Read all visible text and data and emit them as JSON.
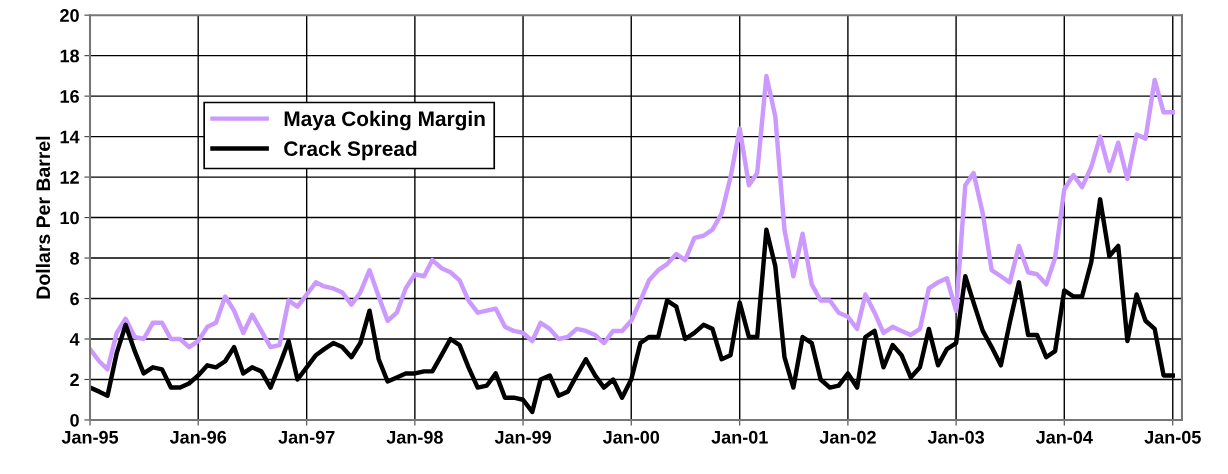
{
  "chart_data": {
    "type": "line",
    "ylabel": "Dollars Per Barrel",
    "x": [
      "1995-01",
      "1995-02",
      "1995-03",
      "1995-04",
      "1995-05",
      "1995-06",
      "1995-07",
      "1995-08",
      "1995-09",
      "1995-10",
      "1995-11",
      "1995-12",
      "1996-01",
      "1996-02",
      "1996-03",
      "1996-04",
      "1996-05",
      "1996-06",
      "1996-07",
      "1996-08",
      "1996-09",
      "1996-10",
      "1996-11",
      "1996-12",
      "1997-01",
      "1997-02",
      "1997-03",
      "1997-04",
      "1997-05",
      "1997-06",
      "1997-07",
      "1997-08",
      "1997-09",
      "1997-10",
      "1997-11",
      "1997-12",
      "1998-01",
      "1998-02",
      "1998-03",
      "1998-04",
      "1998-05",
      "1998-06",
      "1998-07",
      "1998-08",
      "1998-09",
      "1998-10",
      "1998-11",
      "1998-12",
      "1999-01",
      "1999-02",
      "1999-03",
      "1999-04",
      "1999-05",
      "1999-06",
      "1999-07",
      "1999-08",
      "1999-09",
      "1999-10",
      "1999-11",
      "1999-12",
      "2000-01",
      "2000-02",
      "2000-03",
      "2000-04",
      "2000-05",
      "2000-06",
      "2000-07",
      "2000-08",
      "2000-09",
      "2000-10",
      "2000-11",
      "2000-12",
      "2001-01",
      "2001-02",
      "2001-03",
      "2001-04",
      "2001-05",
      "2001-06",
      "2001-07",
      "2001-08",
      "2001-09",
      "2001-10",
      "2001-11",
      "2001-12",
      "2002-01",
      "2002-02",
      "2002-03",
      "2002-04",
      "2002-05",
      "2002-06",
      "2002-07",
      "2002-08",
      "2002-09",
      "2002-10",
      "2002-11",
      "2002-12",
      "2003-01",
      "2003-02",
      "2003-03",
      "2003-04",
      "2003-05",
      "2003-06",
      "2003-07",
      "2003-08",
      "2003-09",
      "2003-10",
      "2003-11",
      "2003-12",
      "2004-01",
      "2004-02",
      "2004-03",
      "2004-04",
      "2004-05",
      "2004-06",
      "2004-07",
      "2004-08",
      "2004-09",
      "2004-10",
      "2004-11",
      "2004-12",
      "2005-01"
    ],
    "series": [
      {
        "name": "Maya Coking Margin",
        "color": "#cc99ff",
        "values": [
          3.5,
          2.9,
          2.5,
          4.3,
          5.0,
          4.1,
          4.0,
          4.8,
          4.8,
          4.0,
          4.0,
          3.6,
          3.9,
          4.6,
          4.8,
          6.1,
          5.4,
          4.3,
          5.2,
          4.4,
          3.6,
          3.7,
          5.9,
          5.6,
          6.2,
          6.8,
          6.6,
          6.5,
          6.3,
          5.7,
          6.3,
          7.4,
          6.1,
          4.9,
          5.3,
          6.5,
          7.2,
          7.1,
          7.9,
          7.5,
          7.3,
          6.9,
          5.9,
          5.3,
          5.4,
          5.5,
          4.6,
          4.4,
          4.3,
          3.9,
          4.8,
          4.5,
          4.0,
          4.1,
          4.5,
          4.4,
          4.2,
          3.8,
          4.4,
          4.4,
          4.9,
          5.9,
          6.9,
          7.4,
          7.7,
          8.2,
          7.9,
          9.0,
          9.1,
          9.4,
          10.2,
          12.0,
          14.4,
          11.6,
          12.2,
          17.0,
          15.0,
          9.4,
          7.1,
          9.2,
          6.7,
          5.9,
          5.9,
          5.3,
          5.1,
          4.5,
          6.2,
          5.3,
          4.3,
          4.6,
          4.4,
          4.2,
          4.5,
          6.5,
          6.8,
          7.0,
          5.4,
          11.6,
          12.2,
          10.2,
          7.4,
          7.1,
          6.8,
          8.6,
          7.3,
          7.2,
          6.7,
          8.0,
          11.4,
          12.1,
          11.5,
          12.5,
          14.0,
          12.3,
          13.7,
          11.9,
          14.1,
          13.9,
          16.8,
          15.2,
          15.2
        ]
      },
      {
        "name": "Crack Spread",
        "color": "#000000",
        "values": [
          1.6,
          1.4,
          1.2,
          3.3,
          4.7,
          3.4,
          2.3,
          2.6,
          2.5,
          1.6,
          1.6,
          1.8,
          2.2,
          2.7,
          2.6,
          2.9,
          3.6,
          2.3,
          2.6,
          2.4,
          1.6,
          2.7,
          3.9,
          2.0,
          2.6,
          3.2,
          3.5,
          3.8,
          3.6,
          3.1,
          3.8,
          5.4,
          3.0,
          1.9,
          2.1,
          2.3,
          2.3,
          2.4,
          2.4,
          3.2,
          4.0,
          3.7,
          2.6,
          1.6,
          1.7,
          2.3,
          1.1,
          1.1,
          1.0,
          0.4,
          2.0,
          2.2,
          1.2,
          1.4,
          2.2,
          3.0,
          2.2,
          1.6,
          2.0,
          1.1,
          2.0,
          3.8,
          4.1,
          4.1,
          5.9,
          5.6,
          4.0,
          4.3,
          4.7,
          4.5,
          3.0,
          3.2,
          5.8,
          4.1,
          4.1,
          9.4,
          7.6,
          3.1,
          1.6,
          4.1,
          3.8,
          2.0,
          1.6,
          1.7,
          2.3,
          1.6,
          4.1,
          4.4,
          2.6,
          3.7,
          3.2,
          2.1,
          2.6,
          4.5,
          2.7,
          3.5,
          3.8,
          7.1,
          5.8,
          4.4,
          3.6,
          2.7,
          4.8,
          6.8,
          4.2,
          4.2,
          3.1,
          3.4,
          6.4,
          6.1,
          6.1,
          7.8,
          10.9,
          8.1,
          8.6,
          3.9,
          6.2,
          4.9,
          4.5,
          2.2,
          2.2
        ]
      }
    ],
    "xlim": [
      "1995-01",
      "2005-02"
    ],
    "xticks": [
      {
        "value": "1995-01",
        "label": "Jan-95"
      },
      {
        "value": "1996-01",
        "label": "Jan-96"
      },
      {
        "value": "1997-01",
        "label": "Jan-97"
      },
      {
        "value": "1998-01",
        "label": "Jan-98"
      },
      {
        "value": "1999-01",
        "label": "Jan-99"
      },
      {
        "value": "2000-01",
        "label": "Jan-00"
      },
      {
        "value": "2001-01",
        "label": "Jan-01"
      },
      {
        "value": "2002-01",
        "label": "Jan-02"
      },
      {
        "value": "2003-01",
        "label": "Jan-03"
      },
      {
        "value": "2004-01",
        "label": "Jan-04"
      },
      {
        "value": "2005-01",
        "label": "Jan-05"
      }
    ],
    "ylim": [
      0,
      20
    ],
    "yticks": [
      0,
      2,
      4,
      6,
      8,
      10,
      12,
      14,
      16,
      18,
      20
    ],
    "grid": true,
    "legend": "top left",
    "marker": "none",
    "line_style": "solid"
  }
}
